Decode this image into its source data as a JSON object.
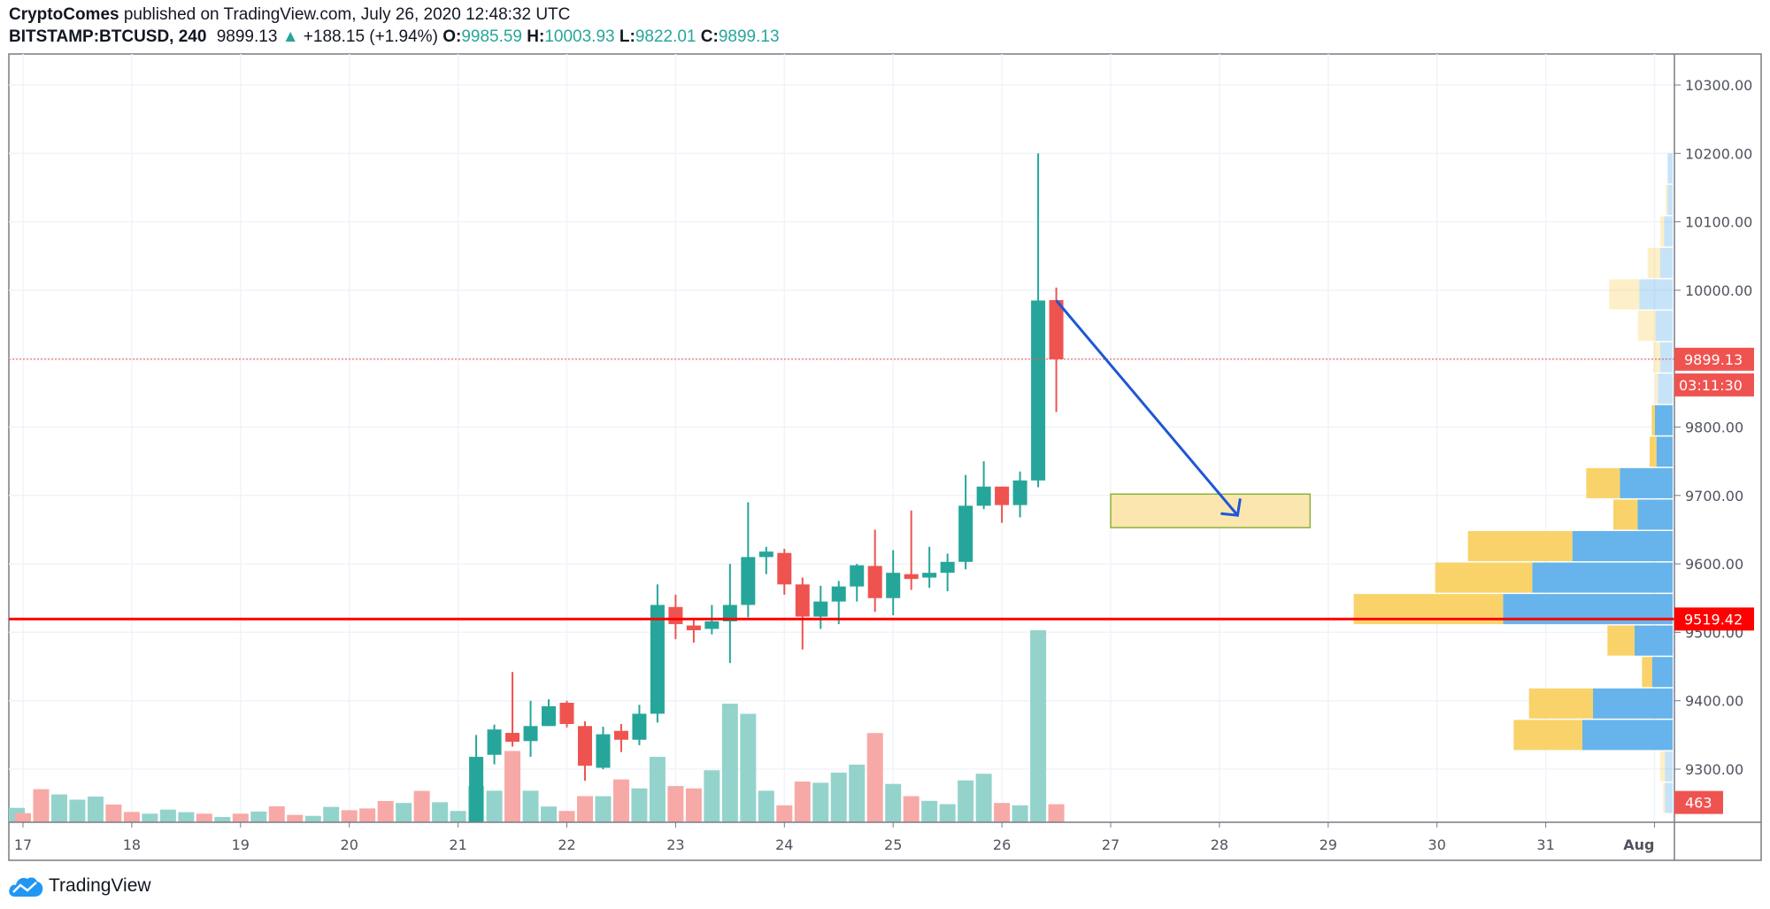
{
  "header": {
    "author": "CryptoComes",
    "published": "published on TradingView.com, July 26, 2020 12:48:32 UTC",
    "symbol": "BITSTAMP:BTCUSD, 240",
    "last": "9899.13",
    "change": "+188.15 (+1.94%)",
    "o_label": "O:",
    "o": "9985.59",
    "h_label": "H:",
    "h": "10003.93",
    "l_label": "L:",
    "l": "9822.01",
    "c_label": "C:",
    "c": "9899.13"
  },
  "logo": {
    "text": "TradingView",
    "icon": "tradingview-cloud-icon"
  },
  "colors": {
    "up": "#26a69a",
    "down": "#ef5350",
    "up_vol": "#94d3cc",
    "down_vol": "#f7a9a7",
    "support": "#ff0000",
    "arrow": "#1e56d6",
    "zone_fill": "#fce6b0",
    "zone_border": "#8bb33a",
    "profile_up": "#5eb0ea",
    "profile_down": "#f9d162",
    "grid": "#f0f3fa"
  },
  "chart_data": {
    "type": "candlestick",
    "timeframe": "240",
    "ylim": [
      9222,
      10340
    ],
    "y_ticks": [
      "10300.00",
      "10200.00",
      "10100.00",
      "10000.00",
      "9800.00",
      "9700.00",
      "9600.00",
      "9500.00",
      "9400.00",
      "9300.00"
    ],
    "x_ticks": [
      {
        "label": "17",
        "date": "2020-07-17"
      },
      {
        "label": "18",
        "date": "2020-07-18"
      },
      {
        "label": "19",
        "date": "2020-07-19"
      },
      {
        "label": "20",
        "date": "2020-07-20"
      },
      {
        "label": "21",
        "date": "2020-07-21"
      },
      {
        "label": "22",
        "date": "2020-07-22"
      },
      {
        "label": "23",
        "date": "2020-07-23"
      },
      {
        "label": "24",
        "date": "2020-07-24"
      },
      {
        "label": "25",
        "date": "2020-07-25"
      },
      {
        "label": "26",
        "date": "2020-07-26"
      },
      {
        "label": "27",
        "date": "2020-07-27"
      },
      {
        "label": "28",
        "date": "2020-07-28"
      },
      {
        "label": "29",
        "date": "2020-07-29"
      },
      {
        "label": "30",
        "date": "2020-07-30"
      },
      {
        "label": "31",
        "date": "2020-07-31"
      },
      {
        "label": "Aug",
        "date": "2020-08-01"
      }
    ],
    "volume_only": [
      [
        "2020-07-16T20:00",
        370,
        "up"
      ],
      [
        "2020-07-17T00:00",
        235,
        "down"
      ],
      [
        "2020-07-17T04:00",
        850,
        "down"
      ],
      [
        "2020-07-17T08:00",
        715,
        "up"
      ],
      [
        "2020-07-17T12:00",
        580,
        "up"
      ],
      [
        "2020-07-17T16:00",
        660,
        "up"
      ],
      [
        "2020-07-17T20:00",
        455,
        "down"
      ],
      [
        "2020-07-18T00:00",
        265,
        "down"
      ],
      [
        "2020-07-18T04:00",
        220,
        "up"
      ],
      [
        "2020-07-18T08:00",
        325,
        "up"
      ],
      [
        "2020-07-18T12:00",
        260,
        "up"
      ],
      [
        "2020-07-18T16:00",
        220,
        "down"
      ],
      [
        "2020-07-18T20:00",
        135,
        "up"
      ],
      [
        "2020-07-19T00:00",
        220,
        "down"
      ],
      [
        "2020-07-19T04:00",
        275,
        "up"
      ],
      [
        "2020-07-19T08:00",
        410,
        "down"
      ],
      [
        "2020-07-19T12:00",
        190,
        "down"
      ],
      [
        "2020-07-19T16:00",
        165,
        "up"
      ],
      [
        "2020-07-19T20:00",
        395,
        "up"
      ],
      [
        "2020-07-20T00:00",
        310,
        "down"
      ],
      [
        "2020-07-20T04:00",
        355,
        "down"
      ],
      [
        "2020-07-20T08:00",
        545,
        "down"
      ],
      [
        "2020-07-20T12:00",
        495,
        "up"
      ],
      [
        "2020-07-20T16:00",
        805,
        "down"
      ],
      [
        "2020-07-20T20:00",
        515,
        "up"
      ],
      [
        "2020-07-21T00:00",
        290,
        "up"
      ]
    ],
    "candles": [
      [
        "2020-07-21T04:00",
        9210,
        9350,
        9200,
        9318,
        930
      ],
      [
        "2020-07-21T08:00",
        9321,
        9365,
        9307,
        9358,
        810
      ],
      [
        "2020-07-21T12:00",
        9353,
        9442,
        9333,
        9340,
        1830
      ],
      [
        "2020-07-21T16:00",
        9341,
        9400,
        9318,
        9363,
        810
      ],
      [
        "2020-07-21T20:00",
        9363,
        9402,
        9363,
        9392,
        405
      ],
      [
        "2020-07-22T00:00",
        9397,
        9400,
        9361,
        9366,
        290
      ],
      [
        "2020-07-22T04:00",
        9363,
        9370,
        9283,
        9305,
        670
      ],
      [
        "2020-07-22T08:00",
        9302,
        9362,
        9300,
        9351,
        670
      ],
      [
        "2020-07-22T12:00",
        9356,
        9366,
        9325,
        9343,
        1100
      ],
      [
        "2020-07-22T16:00",
        9343,
        9394,
        9335,
        9381,
        870
      ],
      [
        "2020-07-22T20:00",
        9381,
        9570,
        9368,
        9540,
        1680
      ],
      [
        "2020-07-23T00:00",
        9537,
        9555,
        9490,
        9512,
        930
      ],
      [
        "2020-07-23T04:00",
        9510,
        9518,
        9485,
        9503,
        870
      ],
      [
        "2020-07-23T08:00",
        9505,
        9540,
        9497,
        9516,
        1335
      ],
      [
        "2020-07-23T12:00",
        9516,
        9600,
        9455,
        9540,
        3045
      ],
      [
        "2020-07-23T16:00",
        9540,
        9690,
        9522,
        9610,
        2785
      ],
      [
        "2020-07-23T20:00",
        9610,
        9625,
        9585,
        9618,
        810
      ],
      [
        "2020-07-24T00:00",
        9616,
        9622,
        9555,
        9570,
        435
      ],
      [
        "2020-07-24T04:00",
        9570,
        9580,
        9475,
        9523,
        1045
      ],
      [
        "2020-07-24T08:00",
        9523,
        9568,
        9505,
        9545,
        1015
      ],
      [
        "2020-07-24T12:00",
        9545,
        9575,
        9512,
        9567,
        1275
      ],
      [
        "2020-07-24T16:00",
        9567,
        9600,
        9545,
        9598,
        1480
      ],
      [
        "2020-07-24T20:00",
        9597,
        9650,
        9530,
        9550,
        2290
      ],
      [
        "2020-07-25T00:00",
        9550,
        9620,
        9525,
        9587,
        985
      ],
      [
        "2020-07-25T04:00",
        9585,
        9678,
        9562,
        9578,
        670
      ],
      [
        "2020-07-25T08:00",
        9580,
        9625,
        9565,
        9587,
        550
      ],
      [
        "2020-07-25T12:00",
        9587,
        9615,
        9560,
        9603,
        465
      ],
      [
        "2020-07-25T16:00",
        9603,
        9730,
        9592,
        9685,
        1075
      ],
      [
        "2020-07-25T20:00",
        9685,
        9750,
        9680,
        9713,
        1245
      ],
      [
        "2020-07-26T00:00",
        9713,
        9713,
        9660,
        9686,
        495
      ],
      [
        "2020-07-26T04:00",
        9686,
        9735,
        9668,
        9722,
        435
      ],
      [
        "2020-07-26T08:00",
        9722,
        10200,
        9712,
        9985,
        4930
      ],
      [
        "2020-07-26T12:00",
        9985.59,
        10003.93,
        9822.01,
        9899.13,
        463
      ]
    ],
    "volume_profile": {
      "top_price": 10200,
      "bin_size": 46,
      "rows": [
        [
          17,
          0,
          false
        ],
        [
          17,
          6,
          false
        ],
        [
          29,
          13,
          false
        ],
        [
          42,
          43,
          false
        ],
        [
          113,
          102,
          false
        ],
        [
          58,
          60,
          false
        ],
        [
          42,
          23,
          false
        ],
        [
          50,
          10,
          false
        ],
        [
          60,
          11,
          true
        ],
        [
          55,
          23,
          true
        ],
        [
          179,
          114,
          true
        ],
        [
          119,
          82,
          true
        ],
        [
          340,
          354,
          true
        ],
        [
          476,
          329,
          true
        ],
        [
          575,
          506,
          true
        ],
        [
          129,
          92,
          true
        ],
        [
          69,
          35,
          true
        ],
        [
          270,
          217,
          true
        ],
        [
          306,
          233,
          true
        ],
        [
          26,
          17,
          false
        ],
        [
          26,
          6,
          false
        ]
      ]
    },
    "last_price": {
      "value": 9899.13,
      "label": "9899.13",
      "countdown": "03:11:30"
    },
    "support_line": {
      "value": 9519.42,
      "label": "9519.42"
    },
    "last_volume": {
      "value": 463,
      "label": "463"
    },
    "annotations": {
      "arrow": {
        "from": [
          "2020-07-26T12:00",
          9985
        ],
        "to": [
          "2020-07-28T04:00",
          9671
        ]
      },
      "target_zone": {
        "from": "2020-07-27T00:00",
        "to": "2020-07-28T20:00",
        "top": 9702,
        "bottom": 9653
      }
    }
  }
}
